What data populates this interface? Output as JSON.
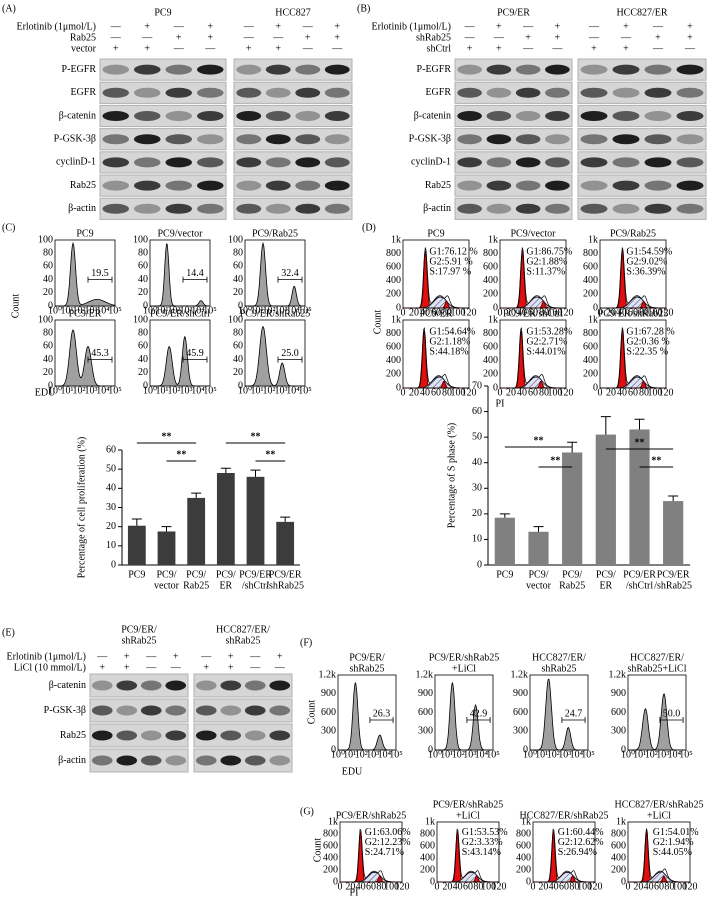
{
  "panel_A": {
    "label": "(A)",
    "groups": [
      "PC9",
      "HCC827"
    ],
    "treatments": [
      {
        "name": "Erlotinib (1μmol/L)",
        "signs": [
          "—",
          "+",
          "—",
          "+"
        ]
      },
      {
        "name": "Rab25",
        "signs": [
          "—",
          "—",
          "+",
          "+"
        ]
      },
      {
        "name": "vector",
        "signs": [
          "+",
          "+",
          "—",
          "—"
        ]
      }
    ],
    "blots": [
      "P-EGFR",
      "EGFR",
      "β-catenin",
      "P-GSK-3β",
      "cyclinD-1",
      "Rab25",
      "β-actin"
    ]
  },
  "panel_B": {
    "label": "(B)",
    "groups": [
      "PC9/ER",
      "HCC827/ER"
    ],
    "treatments": [
      {
        "name": "Erlotinib (1μmol/L)",
        "signs": [
          "—",
          "+",
          "—",
          "+"
        ]
      },
      {
        "name": "shRab25",
        "signs": [
          "—",
          "—",
          "+",
          "+"
        ]
      },
      {
        "name": "shCtrl",
        "signs": [
          "+",
          "+",
          "—",
          "—"
        ]
      }
    ],
    "blots": [
      "P-EGFR",
      "EGFR",
      "β-catenin",
      "P-GSK-3β",
      "cyclinD-1",
      "Rab25",
      "β-actin"
    ]
  },
  "panel_C": {
    "label": "(C)",
    "y_axis_label": "Count",
    "x_axis_label": "EDU",
    "yticks": [
      "100",
      "80",
      "60",
      "40",
      "20",
      "0"
    ],
    "xticks": [
      "10⁰",
      "10¹",
      "10²",
      "10³",
      "10⁴",
      "10⁵"
    ],
    "plots": [
      {
        "title": [
          "PC9"
        ],
        "gate": "19.5"
      },
      {
        "title": [
          "PC9/vector"
        ],
        "gate": "14.4"
      },
      {
        "title": [
          "PC9/Rab25"
        ],
        "gate": "32.4"
      },
      {
        "title": [
          "PC9/ER"
        ],
        "gate": "45.3"
      },
      {
        "title": [
          "PC9/ER/shCtrl"
        ],
        "gate": "45.9"
      },
      {
        "title": [
          "PC9/ER/shRab25"
        ],
        "gate": "25.0"
      }
    ]
  },
  "panel_D": {
    "label": "(D)",
    "y_axis_label": "Count",
    "x_axis_label": "PI",
    "yticks": [
      "1k",
      "800",
      "600",
      "400",
      "200",
      "0"
    ],
    "xticks": [
      "0",
      "20",
      "40",
      "60",
      "80",
      "100",
      "120"
    ],
    "plots": [
      {
        "title": [
          "PC9"
        ],
        "stats": [
          "G1:76.12 %",
          "G2:5.91 %",
          "S:17.97 %"
        ]
      },
      {
        "title": [
          "PC9/vector"
        ],
        "stats": [
          "G1:86.75%",
          "G2:1.88%",
          "S:11.37%"
        ]
      },
      {
        "title": [
          "PC9/Rab25"
        ],
        "stats": [
          "G1:54.59%",
          "G2:9.02%",
          "S:36.39%"
        ]
      },
      {
        "title": [
          "PC9/ER"
        ],
        "stats": [
          "G1:54.64%",
          "G2:1.18%",
          "S:44.18%"
        ]
      },
      {
        "title": [
          "PC9/ER/shCtrl"
        ],
        "stats": [
          "G1:53.28%",
          "G2:2.71%",
          "S:44.01%"
        ]
      },
      {
        "title": [
          "PC9/ER/shRab25"
        ],
        "stats": [
          "G1:67.28 %",
          "G2:0.36 %",
          "S:22.35 %"
        ]
      }
    ]
  },
  "panel_E": {
    "label": "(E)",
    "groups": [
      [
        "PC9/ER/",
        "shRab25"
      ],
      [
        "HCC827/ER/",
        "shRab25"
      ]
    ],
    "treatments": [
      {
        "name": "Erlotinib (1μmol/L)",
        "signs": [
          "—",
          "+",
          "—",
          "+"
        ]
      },
      {
        "name": "LiCl (10 mmol/L)",
        "signs": [
          "+",
          "+",
          "—",
          "—"
        ]
      }
    ],
    "blots": [
      "β-catenin",
      "P-GSK-3β",
      "Rab25",
      "β-actin"
    ]
  },
  "panel_F": {
    "label": "(F)",
    "y_axis_label": "Count",
    "x_axis_label": "EDU",
    "yticks": [
      "1.2k",
      "900",
      "600",
      "300",
      "0"
    ],
    "xticks": [
      "10⁰",
      "10¹",
      "10²",
      "10³",
      "10⁴",
      "10⁵"
    ],
    "plots": [
      {
        "title": [
          "PC9/ER/",
          "shRab25"
        ],
        "gate": "26.3"
      },
      {
        "title": [
          "PC9/ER/shRab25",
          "+LiCl"
        ],
        "gate": "42.9"
      },
      {
        "title": [
          "HCC827/ER/",
          "shRab25"
        ],
        "gate": "24.7"
      },
      {
        "title": [
          "HCC827/ER/",
          "shRab25+LiCl"
        ],
        "gate": "50.0"
      }
    ]
  },
  "panel_G": {
    "label": "(G)",
    "y_axis_label": "Count",
    "x_axis_label": "PI",
    "yticks": [
      "1k",
      "800",
      "600",
      "400",
      "200",
      "0"
    ],
    "xticks": [
      "0",
      "20",
      "40",
      "60",
      "80",
      "100",
      "120"
    ],
    "plots": [
      {
        "title": [
          "PC9/ER/shRab25"
        ],
        "stats": [
          "G1:63.06%",
          "G2:12.23%",
          "S:24.71%"
        ]
      },
      {
        "title": [
          "PC9/ER/shRab25",
          "+LiCl"
        ],
        "stats": [
          "G1:53.53%",
          "G2:3.33%",
          "S:43.14%"
        ]
      },
      {
        "title": [
          "HCC827/ER/shRab25"
        ],
        "stats": [
          "G1:60.44%",
          "G2:12.62%",
          "S:26.94%"
        ]
      },
      {
        "title": [
          "HCC827/ER/shRab25",
          "+LiCl"
        ],
        "stats": [
          "G1:54.01%",
          "G2:1.94%",
          "S:44.05%"
        ]
      }
    ]
  },
  "chart_data": [
    {
      "type": "bar",
      "y_axis_label": "Percentage of cell proliferation (%)",
      "categories": [
        [
          "PC9"
        ],
        [
          "PC9/",
          "vector"
        ],
        [
          "PC9/",
          "Rab25"
        ],
        [
          "PC9/",
          "ER"
        ],
        [
          "PC9/ER",
          "/shCtrl"
        ],
        [
          "PC9/ER",
          "/shRab25"
        ]
      ],
      "values": [
        20.5,
        17.5,
        35,
        48,
        46,
        22.5
      ],
      "errors": [
        3.5,
        2.5,
        2.5,
        2.5,
        3.5,
        2.5
      ],
      "ylim": [
        0,
        60
      ],
      "yticks": [
        0,
        10,
        20,
        30,
        40,
        50,
        60
      ],
      "color": "#3c3c3c",
      "annotations": [
        "**",
        "**",
        "**",
        "**"
      ]
    },
    {
      "type": "bar",
      "y_axis_label": "Percentage of S phase (%)",
      "categories": [
        [
          "PC9"
        ],
        [
          "PC9/",
          "vector"
        ],
        [
          "PC9/",
          "Rab25"
        ],
        [
          "PC9/",
          "ER"
        ],
        [
          "PC9/ER",
          "/shCtrl"
        ],
        [
          "PC9/ER",
          "/shRab25"
        ]
      ],
      "values": [
        18.5,
        13,
        44,
        51,
        53,
        25
      ],
      "errors": [
        1.5,
        2,
        4,
        7,
        4,
        2
      ],
      "ylim": [
        0,
        70
      ],
      "yticks": [
        0,
        10,
        20,
        30,
        40,
        50,
        60,
        70
      ],
      "color": "#808080",
      "annotations": [
        "**",
        "**",
        "**",
        "**"
      ]
    }
  ]
}
